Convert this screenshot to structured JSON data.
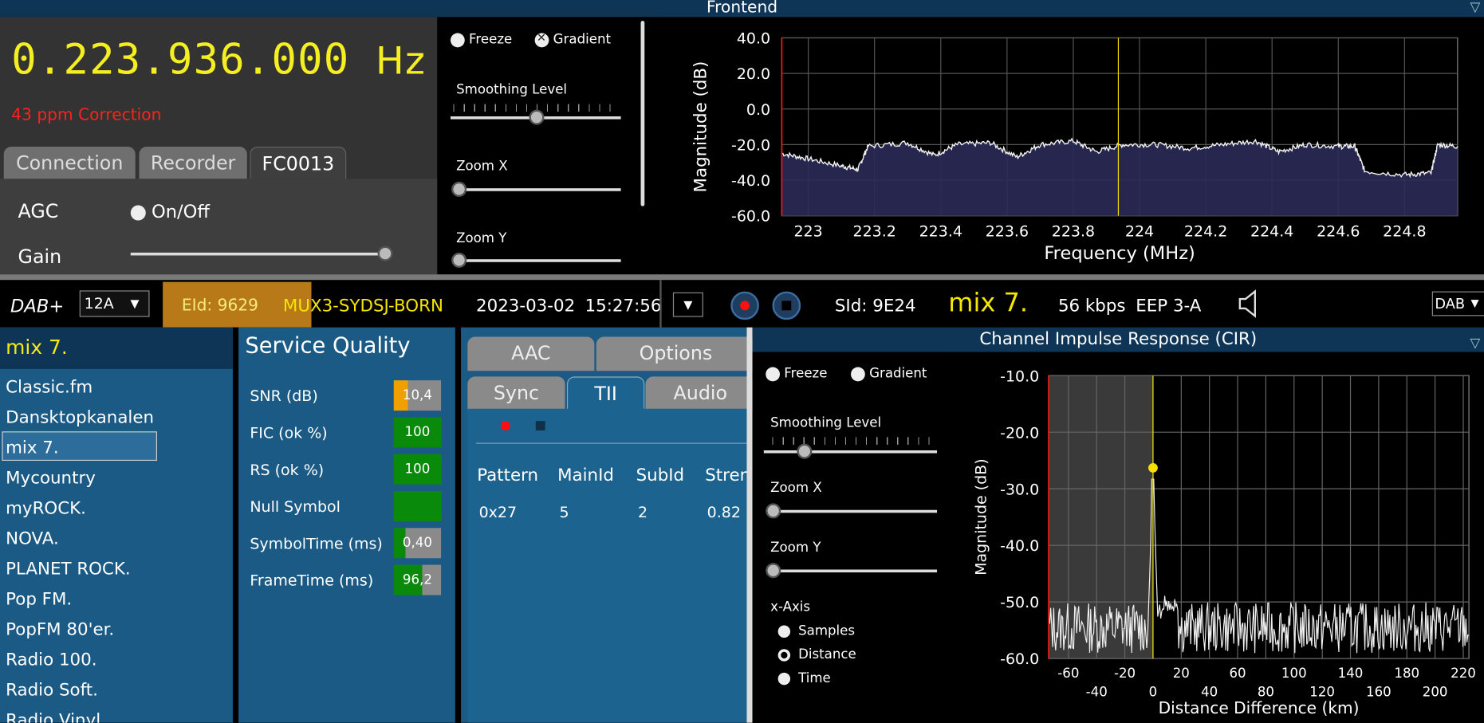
{
  "frontend": {
    "title": "Frontend",
    "frequency": "0.223.936.000",
    "frequency_unit": "Hz",
    "ppm_correction": "43 ppm Correction",
    "tabs": [
      "Connection",
      "Recorder",
      "FC0013"
    ],
    "active_tab": "FC0013",
    "agc_label": "AGC",
    "agc_toggle_label": "On/Off",
    "gain_label": "Gain",
    "gain_value": 0.98,
    "controls": {
      "freeze": "Freeze",
      "gradient": "Gradient",
      "smoothing_label": "Smoothing Level",
      "smoothing_value": 0.5,
      "zoom_x": "Zoom X",
      "zoom_x_value": 0,
      "zoom_y": "Zoom Y",
      "zoom_y_value": 0
    }
  },
  "spectrum_chart": {
    "type": "line",
    "xlabel": "Frequency (MHz)",
    "ylabel": "Magnitude (dB)",
    "x_ticks": [
      "223",
      "223.2",
      "223.4",
      "223.6",
      "223.8",
      "224",
      "224.2",
      "224.4",
      "224.6",
      "224.8"
    ],
    "y_ticks": [
      "40.0",
      "20.0",
      "0.0",
      "-20.0",
      "-40.0",
      "-60.0"
    ],
    "xlim": [
      222.92,
      224.96
    ],
    "ylim": [
      -60,
      40
    ],
    "marker_freq": 223.936,
    "series": [
      {
        "x": [
          222.92,
          223.0,
          223.1,
          223.15,
          223.18,
          223.3,
          223.38,
          223.45,
          223.55,
          223.63,
          223.7,
          223.8,
          223.87,
          223.95,
          224.05,
          224.15,
          224.25,
          224.35,
          224.42,
          224.5,
          224.6,
          224.65,
          224.68,
          224.8,
          224.88,
          224.9,
          224.96
        ],
        "y": [
          -25,
          -28,
          -32,
          -34,
          -21,
          -19,
          -26,
          -20,
          -19,
          -27,
          -20,
          -18,
          -24,
          -20,
          -20,
          -22,
          -20,
          -18,
          -24,
          -20,
          -21,
          -21,
          -35,
          -37,
          -36,
          -20,
          -21
        ]
      }
    ]
  },
  "dab": {
    "mode_label": "DAB+",
    "channel": "12A",
    "eid": "EId: 9629",
    "ensemble": "MUX3-SYDSJ-BORN",
    "date": "2023-03-02",
    "time": "15:27:56",
    "sid": "SId: 9E24",
    "service_name": "mix 7.",
    "bitrate": "56 kbps",
    "protection": "EEP 3-A",
    "mode_select": "DAB"
  },
  "services": {
    "current": "mix 7.",
    "items": [
      "Classic.fm",
      "Dansktopkanalen",
      "mix 7.",
      "Mycountry",
      "myROCK.",
      "NOVA.",
      "PLANET ROCK.",
      "Pop FM.",
      "PopFM 80'er.",
      "Radio 100.",
      "Radio Soft.",
      "Radio Vinyl"
    ],
    "selected_index": 2
  },
  "quality": {
    "title": "Service Quality",
    "rows": [
      {
        "label": "SNR (dB)",
        "value": "10,4",
        "fill": 0.3,
        "color": "#f0a000"
      },
      {
        "label": "FIC (ok %)",
        "value": "100",
        "fill": 1.0,
        "color": "#0a8a0a"
      },
      {
        "label": "RS (ok %)",
        "value": "100",
        "fill": 1.0,
        "color": "#0a8a0a"
      },
      {
        "label": "Null Symbol",
        "value": "",
        "fill": 1.0,
        "color": "#0a8a0a"
      },
      {
        "label": "SymbolTime (ms)",
        "value": "0,40",
        "fill": 0.25,
        "color": "#0a8a0a"
      },
      {
        "label": "FrameTime (ms)",
        "value": "96,2",
        "fill": 0.6,
        "color": "#0a8a0a"
      }
    ]
  },
  "tii": {
    "tabs_top": [
      "AAC",
      "Options"
    ],
    "tabs_bottom": [
      "Sync",
      "TII",
      "Audio"
    ],
    "active": "TII",
    "columns": [
      "Pattern",
      "MainId",
      "SubId",
      "Stren"
    ],
    "rows": [
      [
        "0x27",
        "5",
        "2",
        "0.82"
      ]
    ]
  },
  "cir": {
    "title": "Channel Impulse Response (CIR)",
    "freeze": "Freeze",
    "gradient": "Gradient",
    "smoothing_label": "Smoothing Level",
    "smoothing_value": 0.2,
    "zoom_x": "Zoom X",
    "zoom_y": "Zoom Y",
    "xaxis_label": "x-Axis",
    "xaxis_options": [
      "Samples",
      "Distance",
      "Time"
    ],
    "xaxis_selected": "Distance"
  },
  "cir_chart": {
    "type": "line",
    "xlabel": "Distance Difference (km)",
    "ylabel": "Magnitude (dB)",
    "x_ticks_top": [
      "-60",
      "-20",
      "20",
      "60",
      "100",
      "140",
      "180",
      "220"
    ],
    "x_ticks_bottom": [
      "-40",
      "0",
      "40",
      "80",
      "120",
      "160",
      "200"
    ],
    "y_ticks": [
      "-10.0",
      "-20.0",
      "-30.0",
      "-40.0",
      "-50.0",
      "-60.0"
    ],
    "xlim": [
      -74,
      224
    ],
    "ylim": [
      -60,
      -10
    ],
    "peak": {
      "x": 0,
      "y": -26.3
    },
    "noise_floor": -55,
    "colors": {
      "shade": "#3a3a3a",
      "peak": "#f5e000"
    }
  }
}
